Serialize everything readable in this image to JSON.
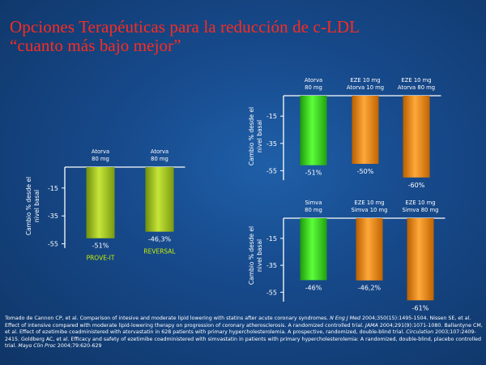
{
  "title": {
    "line1": "Opciones Terapéuticas para la reducción de c-LDL",
    "line2": "“cuanto más bajo mejor”"
  },
  "colors": {
    "background": "#174a8c",
    "title": "#ff2b1e",
    "olive_bar": "#9ec21c",
    "green_bar": "#3bd21a",
    "orange_bar": "#e8890c",
    "trial_label": "#c8f000"
  },
  "chart_data": [
    {
      "type": "bar",
      "ylabel": "Cambio % desde el nivel basal",
      "yticks": [
        -15,
        -35,
        -55
      ],
      "ylim": [
        -58,
        0
      ],
      "categories": [
        "Atorva\n80 mg",
        "Atorva\n80 mg"
      ],
      "values": [
        -51,
        -46.3
      ],
      "value_labels": [
        "-51%",
        "-46,3%"
      ],
      "trial_labels": [
        "PROVE-IT",
        "REVERSAL"
      ],
      "bar_colors": [
        "olive",
        "olive"
      ]
    },
    {
      "type": "bar",
      "ylabel": "Cambio % desde el nivel basal",
      "yticks": [
        -15,
        -35,
        -55
      ],
      "ylim": [
        -62,
        0
      ],
      "categories": [
        "Atorva\n80 mg",
        "EZE 10 mg\nAtorva 10 mg",
        "EZE 10 mg\nAtorva 80 mg"
      ],
      "values": [
        -51,
        -50,
        -60
      ],
      "value_labels": [
        "-51%",
        "-50%",
        "-60%"
      ],
      "bar_colors": [
        "green",
        "orange",
        "orange"
      ]
    },
    {
      "type": "bar",
      "ylabel": "Cambio % desde el nivel basal",
      "yticks": [
        -15,
        -35,
        -55
      ],
      "ylim": [
        -62,
        0
      ],
      "categories": [
        "Simva\n80 mg",
        "EZE 10 mg\nSimva 10 mg",
        "EZE 10 mg\nSimva 80 mg"
      ],
      "values": [
        -46,
        -46.2,
        -61
      ],
      "value_labels": [
        "-46%",
        "-46,2%",
        "-61%"
      ],
      "bar_colors": [
        "green",
        "orange",
        "orange"
      ]
    }
  ],
  "references": {
    "p1": "Tomado de Cannon CP, et al. Comparison of intesive and moderate lipid lowering with statins after acute coronary syndromes. ",
    "p2": "N Eng J Med",
    "p3": " 2004;350(15):1495-1504. Nissen SE, et al. Effect of intensive compared with moderate lipid-lowering therapy on progression of coronary atherosclerosis. A randomized controlled trial. ",
    "p4": "JAMA",
    "p5": " 2004;291(9):1071-1080. Ballantyne CM, et al. Effect of ezetimibe coadministered with atorvastatin in 628 patients with primary hypercholesterolemia. A prospective, randomized, double-blind trial. ",
    "p6": "Circulation",
    "p7": " 2003;107:2409-2415. Goldberg AC, et al. Efficacy and safety of ezetimibe coadministered with simvastatin in patients with primary hypercholesterolemia: A randomized, double-blind, placebo controlled trial. ",
    "p8": "Mayo Clin Proc",
    "p9": " 2004;79:620-629"
  }
}
